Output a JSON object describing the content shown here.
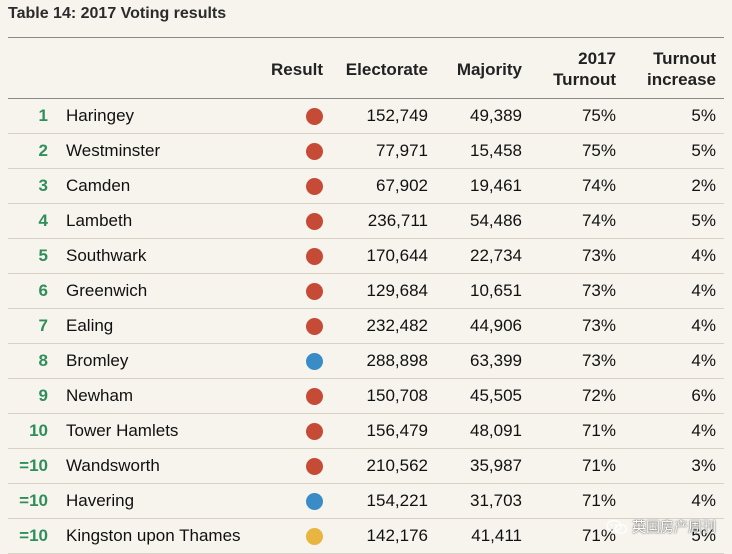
{
  "title": "Table 14: 2017 Voting results",
  "headers": {
    "result": "Result",
    "electorate": "Electorate",
    "majority": "Majority",
    "turnout_line1": "2017",
    "turnout_line2": "Turnout",
    "increase_line1": "Turnout",
    "increase_line2": "increase"
  },
  "colors": {
    "red": "#c54b36",
    "blue": "#3a8cc6",
    "yellow": "#e8b540",
    "rank": "#2f8f5b"
  },
  "rows": [
    {
      "rank": "1",
      "name": "Haringey",
      "result": "red",
      "electorate": "152,749",
      "majority": "49,389",
      "turnout": "75%",
      "increase": "5%"
    },
    {
      "rank": "2",
      "name": "Westminster",
      "result": "red",
      "electorate": "77,971",
      "majority": "15,458",
      "turnout": "75%",
      "increase": "5%"
    },
    {
      "rank": "3",
      "name": "Camden",
      "result": "red",
      "electorate": "67,902",
      "majority": "19,461",
      "turnout": "74%",
      "increase": "2%"
    },
    {
      "rank": "4",
      "name": "Lambeth",
      "result": "red",
      "electorate": "236,711",
      "majority": "54,486",
      "turnout": "74%",
      "increase": "5%"
    },
    {
      "rank": "5",
      "name": "Southwark",
      "result": "red",
      "electorate": "170,644",
      "majority": "22,734",
      "turnout": "73%",
      "increase": "4%"
    },
    {
      "rank": "6",
      "name": "Greenwich",
      "result": "red",
      "electorate": "129,684",
      "majority": "10,651",
      "turnout": "73%",
      "increase": "4%"
    },
    {
      "rank": "7",
      "name": "Ealing",
      "result": "red",
      "electorate": "232,482",
      "majority": "44,906",
      "turnout": "73%",
      "increase": "4%"
    },
    {
      "rank": "8",
      "name": "Bromley",
      "result": "blue",
      "electorate": "288,898",
      "majority": "63,399",
      "turnout": "73%",
      "increase": "4%"
    },
    {
      "rank": "9",
      "name": "Newham",
      "result": "red",
      "electorate": "150,708",
      "majority": "45,505",
      "turnout": "72%",
      "increase": "6%"
    },
    {
      "rank": "10",
      "name": "Tower Hamlets",
      "result": "red",
      "electorate": "156,479",
      "majority": "48,091",
      "turnout": "71%",
      "increase": "4%"
    },
    {
      "rank": "=10",
      "name": "Wandsworth",
      "result": "red",
      "electorate": "210,562",
      "majority": "35,987",
      "turnout": "71%",
      "increase": "3%"
    },
    {
      "rank": "=10",
      "name": "Havering",
      "result": "blue",
      "electorate": "154,221",
      "majority": "31,703",
      "turnout": "71%",
      "increase": "4%"
    },
    {
      "rank": "=10",
      "name": "Kingston upon Thames",
      "result": "yellow",
      "electorate": "142,176",
      "majority": "41,411",
      "turnout": "71%",
      "increase": "5%"
    }
  ],
  "watermark": {
    "icon": "wechat-icon",
    "text": "英国房产周刊"
  }
}
